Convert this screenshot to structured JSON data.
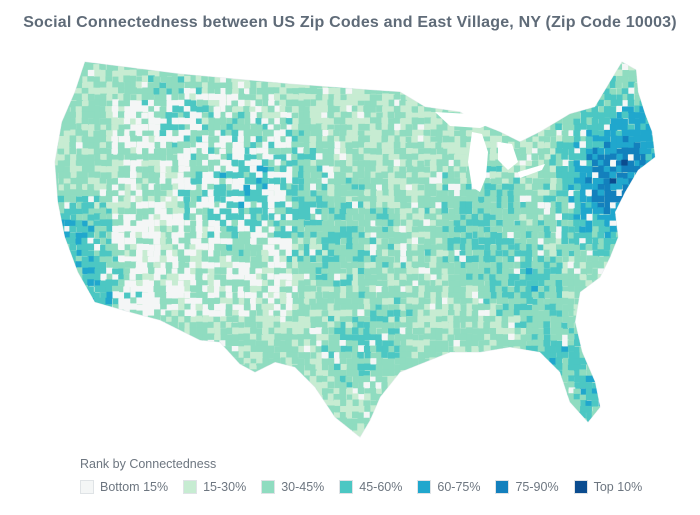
{
  "title": "Social Connectedness between US Zip Codes and East Village, NY (Zip Code 10003)",
  "map": {
    "base_color": "#c4ead3",
    "land_shade": "#eef1f2",
    "water_color": "#ffffff"
  },
  "legend": {
    "title": "Rank by Connectedness",
    "items": [
      {
        "label": "Bottom 15%",
        "color": "#f4f6f6"
      },
      {
        "label": "15-30%",
        "color": "#c7ecd2"
      },
      {
        "label": "30-45%",
        "color": "#8fdcc0"
      },
      {
        "label": "45-60%",
        "color": "#4cc7c3"
      },
      {
        "label": "60-75%",
        "color": "#20a7cd"
      },
      {
        "label": "75-90%",
        "color": "#1380bd"
      },
      {
        "label": "Top 10%",
        "color": "#0b4c8f"
      }
    ]
  }
}
